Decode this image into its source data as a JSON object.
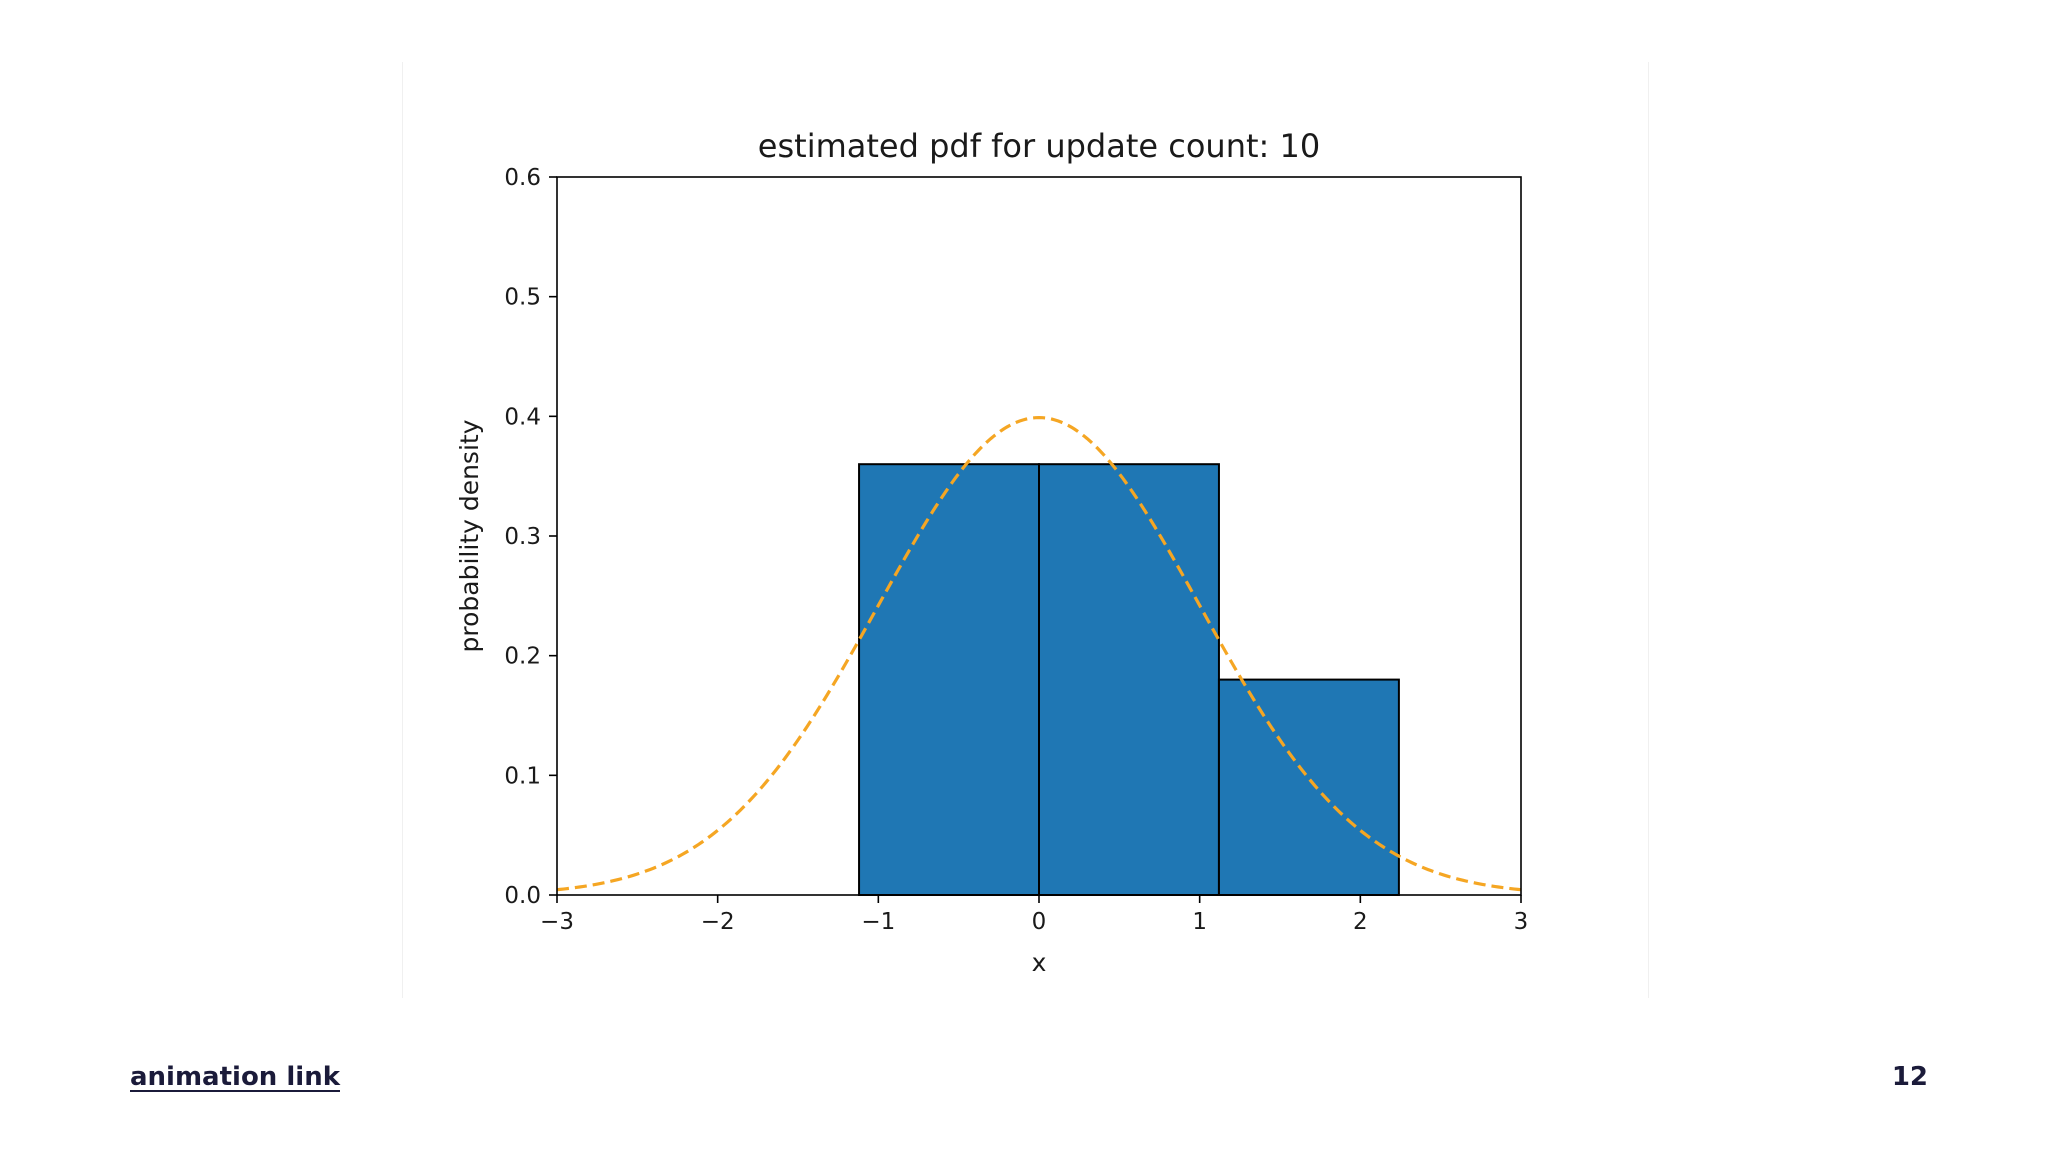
{
  "footer": {
    "link_label": "animation link",
    "page_number": "12"
  },
  "colors": {
    "bar_fill": "#1f77b4",
    "bar_edge": "#000000",
    "pdf_line": "#f5a623"
  },
  "chart_data": {
    "type": "bar",
    "title": "estimated pdf for update count: 10",
    "xlabel": "x",
    "ylabel": "probability density",
    "xlim": [
      -3,
      3
    ],
    "ylim": [
      0,
      0.6
    ],
    "xticks": [
      -3,
      -2,
      -1,
      0,
      1,
      2,
      3
    ],
    "xtick_labels": [
      "−3",
      "−2",
      "−1",
      "0",
      "1",
      "2",
      "3"
    ],
    "yticks": [
      0.0,
      0.1,
      0.2,
      0.3,
      0.4,
      0.5,
      0.6
    ],
    "ytick_labels": [
      "0.0",
      "0.1",
      "0.2",
      "0.3",
      "0.4",
      "0.5",
      "0.6"
    ],
    "grid": false,
    "bins": [
      {
        "x0": -1.12,
        "x1": 0.0,
        "density": 0.36
      },
      {
        "x0": 0.0,
        "x1": 1.12,
        "density": 0.36
      },
      {
        "x0": 1.12,
        "x1": 2.24,
        "density": 0.18
      }
    ],
    "overlay": {
      "type": "line",
      "style": "dashed",
      "function": "standard normal pdf",
      "mean": 0,
      "std": 1
    }
  }
}
